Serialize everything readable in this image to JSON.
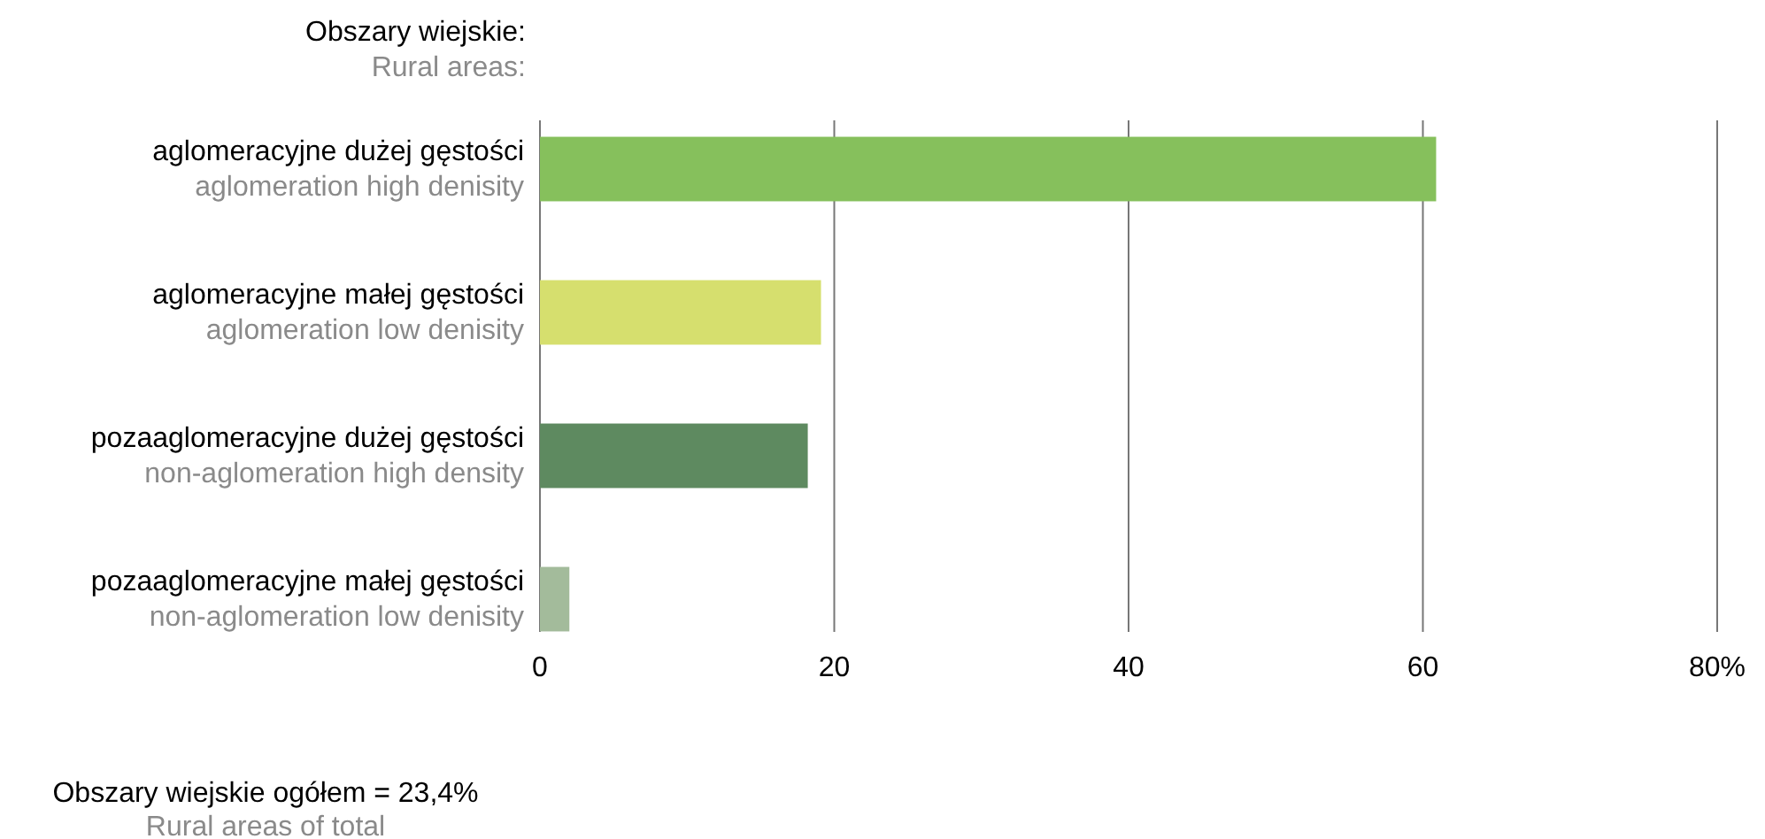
{
  "chart_data": {
    "type": "bar",
    "orientation": "horizontal",
    "title": "Obszary wiejskie:",
    "subtitle": "Rural areas:",
    "categories": [
      "aglomeracyjne dużej gęstości\naglomeration high denisity",
      "aglomeracyjne małej gęstości\naglomeration low denisity",
      "pozaaglomeracyjne dużej gęstości\nnon-aglomeration high density",
      "pozaaglomeracyjne małej gęstości\nnon-aglomeration low denisity"
    ],
    "values": [
      60.9,
      19.1,
      18.2,
      2.0
    ],
    "colors": [
      "#86c05c",
      "#d6df6e",
      "#5e8a60",
      "#a3bb9b"
    ],
    "xlim": [
      0,
      80
    ],
    "xticks": [
      0,
      20,
      40,
      60,
      {
        "value": 80,
        "label": "80%"
      }
    ],
    "grid": "x",
    "annotations": [
      "Obszary wiejskie ogółem = 23,4%",
      "Rural areas of total"
    ]
  }
}
